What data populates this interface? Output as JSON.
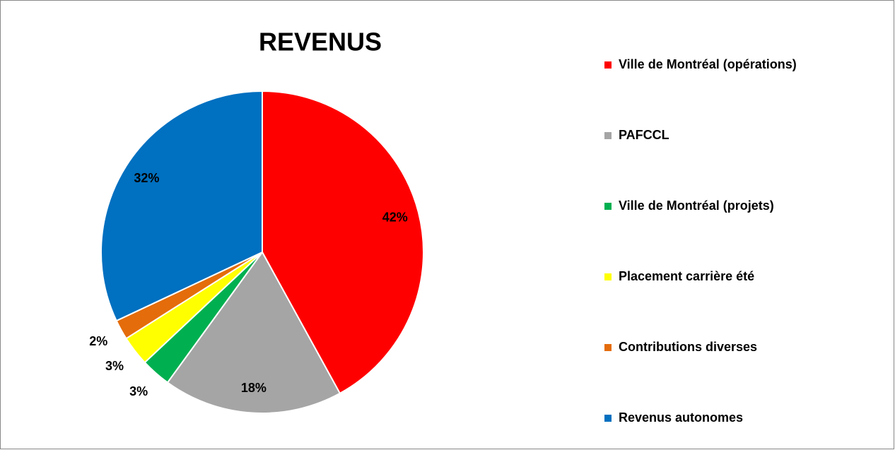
{
  "chart_data": {
    "type": "pie",
    "title": "REVENUS",
    "categories": [
      "Ville de Montréal (opérations)",
      "PAFCCL",
      "Ville de Montréal (projets)",
      "Placement carrière été",
      "Contributions diverses",
      "Revenus autonomes"
    ],
    "values": [
      42,
      18,
      3,
      3,
      2,
      32
    ],
    "value_labels": [
      "42%",
      "18%",
      "3%",
      "3%",
      "2%",
      "32%"
    ],
    "colors": [
      "#ff0000",
      "#a5a5a5",
      "#00b050",
      "#ffff00",
      "#e46c0a",
      "#0070c0"
    ],
    "legend": "right"
  }
}
